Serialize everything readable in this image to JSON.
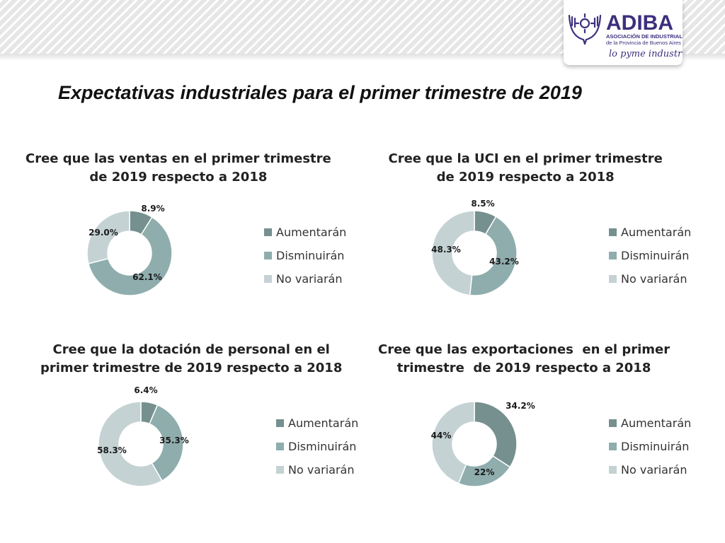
{
  "logo": {
    "name": "ADIBA",
    "line1": "ASOCIACIÓN DE INDUSTRIALES",
    "line2": "de la Provincia de Buenos Aires",
    "tagline": "lo pyme industrial"
  },
  "title": "Expectativas industriales para el primer trimestre de 2019",
  "colors": {
    "aumentaran": "#75908f",
    "disminuiran": "#8fadad",
    "no_variaran": "#c4d2d4",
    "title_text": "#111111",
    "logo_purple": "#3d2f7d"
  },
  "chart_data": [
    {
      "type": "pie",
      "title": "Cree que las ventas en el primer trimestre\nde 2019 respecto a 2018",
      "categories": [
        "Aumentarán",
        "Disminuirán",
        "No variarán"
      ],
      "values": [
        8.9,
        62.1,
        29.0
      ],
      "labels": [
        "8.9%",
        "62.1%",
        "29.0%"
      ],
      "legend": "right"
    },
    {
      "type": "pie",
      "title": "Cree que la UCI en el primer trimestre\nde 2019 respecto a 2018",
      "categories": [
        "Aumentarán",
        "Disminuirán",
        "No variarán"
      ],
      "values": [
        8.5,
        43.2,
        48.3
      ],
      "labels": [
        "8.5%",
        "43.2%",
        "48.3%"
      ],
      "legend": "right"
    },
    {
      "type": "pie",
      "title": "Cree que la dotación de personal en el\nprimer trimestre de 2019 respecto a 2018",
      "categories": [
        "Aumentarán",
        "Disminuirán",
        "No variarán"
      ],
      "values": [
        6.4,
        35.3,
        58.3
      ],
      "labels": [
        "6.4%",
        "35.3%",
        "58.3%"
      ],
      "legend": "right"
    },
    {
      "type": "pie",
      "title": "Cree que las exportaciones  en el primer\ntrimestre  de 2019 respecto a 2018",
      "categories": [
        "Aumentarán",
        "Disminuirán",
        "No variarán"
      ],
      "values": [
        34.2,
        22,
        44
      ],
      "labels": [
        "34.2%",
        "22%",
        "44%"
      ],
      "legend": "right"
    }
  ]
}
